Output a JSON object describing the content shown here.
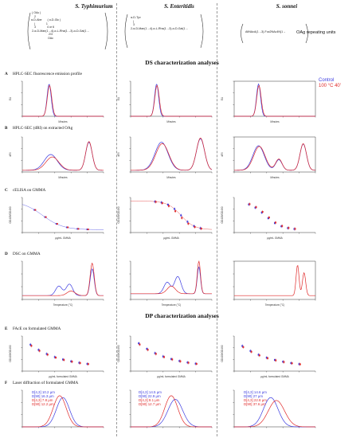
{
  "columns": [
    "S. Typhimurium",
    "S. Enteritidis",
    "S. sonnei"
  ],
  "oag_label": "OAg repeating units",
  "structures": {
    "typhimurium": "  ( OAc )\n     2\n α-D-Abe       ( α-D-Glc )\n     |              1\n     3              4 or 6\n  2-α-D-Man(1→4)-α-L-Rha(1→3)-α-D-Gal(1→\n                       2/3\n                      OAc",
    "enteritidis": "  α-D-Tyv\n     |\n     3\n  2-α-D-Man(1→4)-α-L-Rha(1→3)-α-D-Gal(1→",
    "sonnei": "AltNAcA(1→3)-Fuc2NAc4N(1→"
  },
  "sections": {
    "ds": "DS characterization analyses",
    "dp": "DP characterization analyses"
  },
  "rows": {
    "A": {
      "letter": "A",
      "label": "HPLC-SEC fluorescence emission profile"
    },
    "B": {
      "letter": "B",
      "label": "HPLC-SEC (dRI) on extracted OAg"
    },
    "C": {
      "letter": "C",
      "label": "cELISA on GMMA"
    },
    "D": {
      "letter": "D",
      "label": "DSC on GMMA"
    },
    "E": {
      "letter": "E",
      "label": "FAcE on formulated GMMA"
    },
    "F": {
      "letter": "F",
      "label": "Laser diffraction of formulated GMMA"
    }
  },
  "legend": {
    "control": "Control",
    "heated": "100 °C 40'"
  },
  "colors": {
    "control": "#3a3ae0",
    "heated": "#e02a2a"
  },
  "axes": {
    "minutes": "Minutes",
    "eu": "EU",
    "ug_gmma": "μg/mL GMMA",
    "ug_formulated": "μg/mL formulated GMMA",
    "od": "OD405/OD490",
    "temp": "Temperature (°C)"
  },
  "laser": {
    "typhimurium": {
      "c1": "D[4,3] 10.2 μm",
      "c2": "D[90] 16.3 μm",
      "h1": "D[4,3] 7.8 μm",
      "h2": "D[90] 12.2 μm"
    },
    "enteritidis": {
      "c1": "D[4,3] 14.5 μm",
      "c2": "D[90] 22.9 μm",
      "h1": "D[4,3] 9.1 μm",
      "h2": "D[90] 12.7 μm"
    },
    "sonnei": {
      "c1": "D[4,3] 14.6 μm",
      "c2": "D[90] 27 μm",
      "h1": "D[4,3] 22.8 μm",
      "h2": "D[90] 37.6 μm"
    }
  }
}
